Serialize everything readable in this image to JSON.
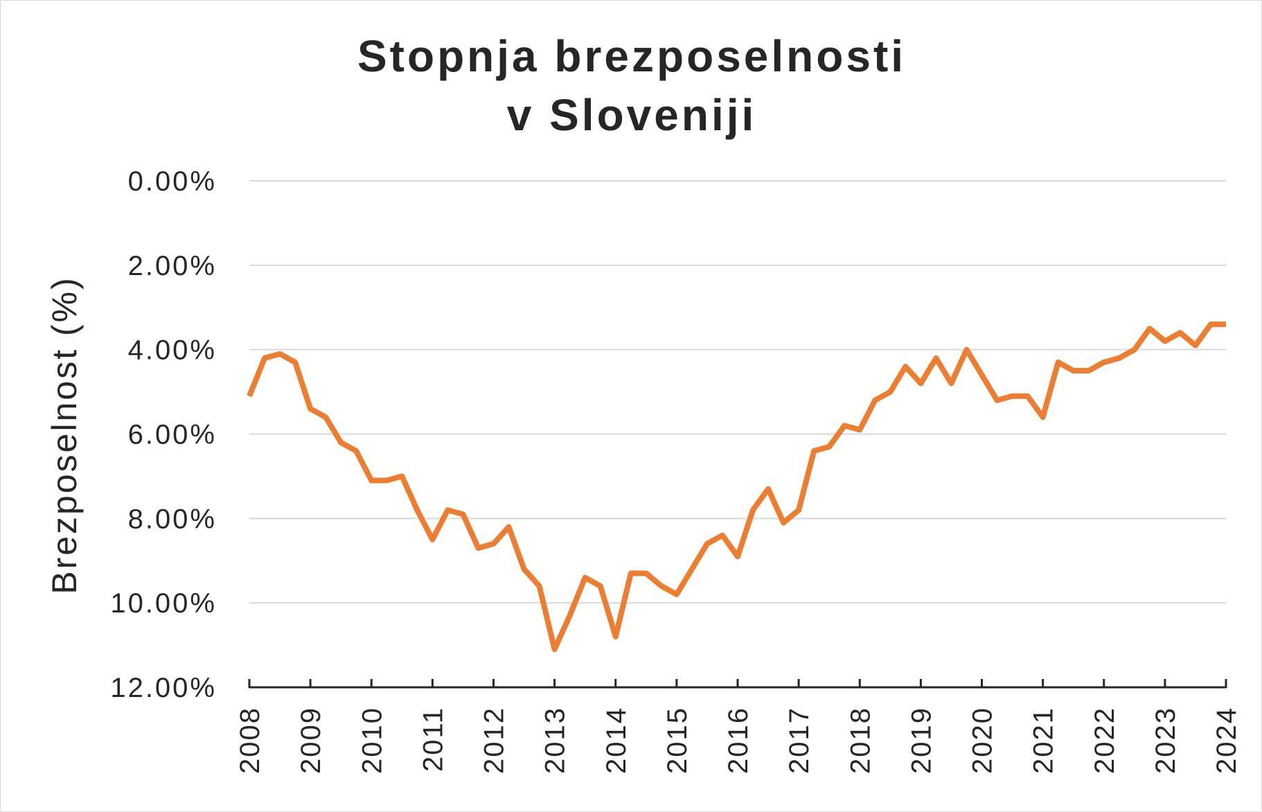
{
  "chart_data": {
    "type": "line",
    "title_lines": [
      "Stopnja brezposelnosti",
      "v Sloveniji"
    ],
    "ylabel": "Brezposelnost (%)",
    "xlabel": "",
    "y_reversed": true,
    "ylim": [
      0,
      12
    ],
    "y_ticks": [
      0,
      2,
      4,
      6,
      8,
      10,
      12
    ],
    "y_tick_labels": [
      "0.00%",
      "2.00%",
      "4.00%",
      "6.00%",
      "8.00%",
      "10.00%",
      "12.00%"
    ],
    "x_tick_labels": [
      "2008",
      "2009",
      "2010",
      "2011",
      "2012",
      "2013",
      "2014",
      "2015",
      "2016",
      "2017",
      "2018",
      "2019",
      "2020",
      "2021",
      "2022",
      "2023",
      "2024"
    ],
    "grid": true,
    "legend": "none",
    "series": [
      {
        "color": "#ED7D31",
        "x": [
          "2008 Q1",
          "2008 Q2",
          "2008 Q3",
          "2008 Q4",
          "2009 Q1",
          "2009 Q2",
          "2009 Q3",
          "2009 Q4",
          "2010 Q1",
          "2010 Q2",
          "2010 Q3",
          "2010 Q4",
          "2011 Q1",
          "2011 Q2",
          "2011 Q3",
          "2011 Q4",
          "2012 Q1",
          "2012 Q2",
          "2012 Q3",
          "2012 Q4",
          "2013 Q1",
          "2013 Q2",
          "2013 Q3",
          "2013 Q4",
          "2014 Q1",
          "2014 Q2",
          "2014 Q3",
          "2014 Q4",
          "2015 Q1",
          "2015 Q2",
          "2015 Q3",
          "2015 Q4",
          "2016 Q1",
          "2016 Q2",
          "2016 Q3",
          "2016 Q4",
          "2017 Q1",
          "2017 Q2",
          "2017 Q3",
          "2017 Q4",
          "2018 Q1",
          "2018 Q2",
          "2018 Q3",
          "2018 Q4",
          "2019 Q1",
          "2019 Q2",
          "2019 Q3",
          "2019 Q4",
          "2020 Q1",
          "2020 Q2",
          "2020 Q3",
          "2020 Q4",
          "2021 Q1",
          "2021 Q2",
          "2021 Q3",
          "2021 Q4",
          "2022 Q1",
          "2022 Q2",
          "2022 Q3",
          "2022 Q4",
          "2023 Q1",
          "2023 Q2",
          "2023 Q3",
          "2023 Q4",
          "2024 Q1"
        ],
        "values": [
          5.1,
          4.2,
          4.1,
          4.3,
          5.4,
          5.6,
          6.2,
          6.4,
          7.1,
          7.1,
          7.0,
          7.8,
          8.5,
          7.8,
          7.9,
          8.7,
          8.6,
          8.2,
          9.2,
          9.6,
          11.1,
          10.3,
          9.4,
          9.6,
          10.8,
          9.3,
          9.3,
          9.6,
          9.8,
          9.2,
          8.6,
          8.4,
          8.9,
          7.8,
          7.3,
          8.1,
          7.8,
          6.4,
          6.3,
          5.8,
          5.9,
          5.2,
          5.0,
          4.4,
          4.8,
          4.2,
          4.8,
          4.0,
          4.6,
          5.2,
          5.1,
          5.1,
          5.6,
          4.3,
          4.5,
          4.5,
          4.3,
          4.2,
          4.0,
          3.5,
          3.8,
          3.6,
          3.9,
          3.4,
          3.4
        ]
      }
    ]
  }
}
